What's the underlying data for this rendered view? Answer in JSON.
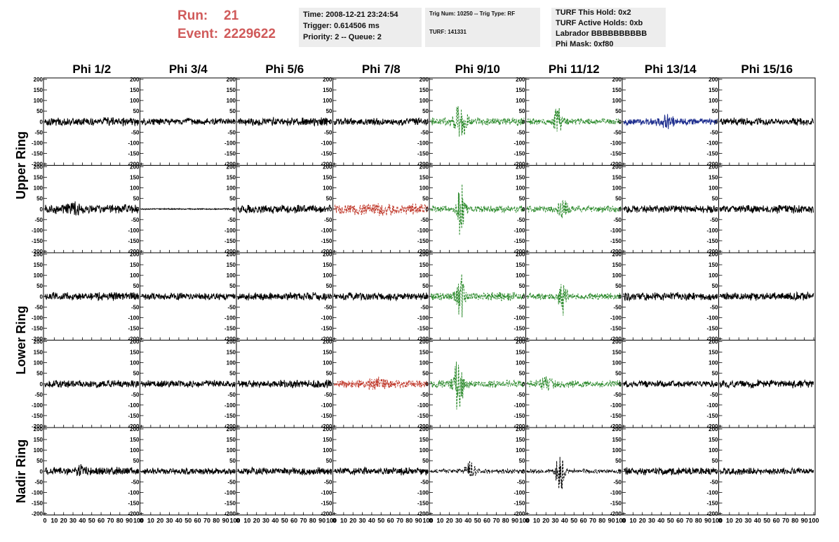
{
  "header": {
    "run_label": "Run:",
    "run_value": "21",
    "event_label": "Event:",
    "event_value": "2229622",
    "time": "Time: 2008-12-21 23:24:54",
    "trigger": "Trigger: 0.614506 ms",
    "priority": "Priority: 2 -- Queue: 2",
    "trig_num": "Trig Num: 10250 -- Trig Type: RF",
    "turf": "TURF: 141331",
    "turf_hold": "TURF This Hold: 0x2",
    "turf_active": "TURF Active Holds: 0xb",
    "labrador": "Labrador BBBBBBBBBB",
    "phi_mask": "Phi Mask: 0xf80"
  },
  "columns": [
    "Phi 1/2",
    "Phi 3/4",
    "Phi 5/6",
    "Phi 7/8",
    "Phi 9/10",
    "Phi 11/12",
    "Phi 13/14",
    "Phi 15/16"
  ],
  "ring_labels": [
    "Upper Ring",
    "Lower Ring",
    "Nadir Ring"
  ],
  "colors": {
    "black": "#000000",
    "green": "#2e8b2e",
    "red": "#c0392b",
    "blue": "#1f2f8f",
    "title_red": "#d05a5a",
    "box_bg": "#ededed"
  },
  "chart_data": {
    "type": "line",
    "xlim": [
      0,
      100
    ],
    "ylim": [
      -200,
      200
    ],
    "y_ticks": [
      200,
      150,
      100,
      50,
      0,
      -50,
      -100,
      -150,
      -200
    ],
    "x_ticks": [
      0,
      10,
      20,
      30,
      40,
      50,
      60,
      70,
      80,
      90,
      100
    ],
    "rows": [
      [
        {
          "color": "black",
          "style": "solid",
          "amp": 22,
          "burst": 0
        },
        {
          "color": "black",
          "style": "solid",
          "amp": 18,
          "burst": 0
        },
        {
          "color": "black",
          "style": "solid",
          "amp": 22,
          "burst": 0
        },
        {
          "color": "black",
          "style": "solid",
          "amp": 20,
          "burst": 0
        },
        {
          "color": "green",
          "style": "dashed",
          "amp": 22,
          "burst": 85,
          "center": 32,
          "width": 14
        },
        {
          "color": "green",
          "style": "dashed",
          "amp": 18,
          "burst": 95,
          "center": 33,
          "width": 8
        },
        {
          "color": "blue",
          "style": "solid",
          "amp": 18,
          "burst": 40,
          "center": 45,
          "width": 15
        },
        {
          "color": "black",
          "style": "solid",
          "amp": 20,
          "burst": 0
        }
      ],
      [
        {
          "color": "black",
          "style": "solid",
          "amp": 25,
          "burst": 25,
          "center": 30,
          "width": 10
        },
        {
          "color": "black",
          "style": "solid",
          "amp": 3,
          "burst": 0
        },
        {
          "color": "black",
          "style": "solid",
          "amp": 22,
          "burst": 0
        },
        {
          "color": "red",
          "style": "dashed",
          "amp": 28,
          "burst": 10,
          "center": 45,
          "width": 30
        },
        {
          "color": "green",
          "style": "dashed",
          "amp": 20,
          "burst": 140,
          "center": 32,
          "width": 8
        },
        {
          "color": "green",
          "style": "dashed",
          "amp": 18,
          "burst": 50,
          "center": 38,
          "width": 10
        },
        {
          "color": "black",
          "style": "solid",
          "amp": 20,
          "burst": 0
        },
        {
          "color": "black",
          "style": "solid",
          "amp": 22,
          "burst": 0
        }
      ],
      [
        {
          "color": "black",
          "style": "solid",
          "amp": 22,
          "burst": 0
        },
        {
          "color": "black",
          "style": "solid",
          "amp": 18,
          "burst": 0
        },
        {
          "color": "black",
          "style": "solid",
          "amp": 22,
          "burst": 0
        },
        {
          "color": "black",
          "style": "solid",
          "amp": 20,
          "burst": 0
        },
        {
          "color": "green",
          "style": "dashed",
          "amp": 22,
          "burst": 115,
          "center": 32,
          "width": 8
        },
        {
          "color": "green",
          "style": "dashed",
          "amp": 18,
          "burst": 90,
          "center": 38,
          "width": 8
        },
        {
          "color": "black",
          "style": "solid",
          "amp": 22,
          "burst": 0
        },
        {
          "color": "black",
          "style": "solid",
          "amp": 22,
          "burst": 0
        }
      ],
      [
        {
          "color": "black",
          "style": "solid",
          "amp": 20,
          "burst": 0
        },
        {
          "color": "black",
          "style": "solid",
          "amp": 20,
          "burst": 0
        },
        {
          "color": "black",
          "style": "solid",
          "amp": 22,
          "burst": 0
        },
        {
          "color": "red",
          "style": "dashed",
          "amp": 22,
          "burst": 15,
          "center": 45,
          "width": 20
        },
        {
          "color": "green",
          "style": "dashed",
          "amp": 20,
          "burst": 160,
          "center": 30,
          "width": 10
        },
        {
          "color": "green",
          "style": "dashed",
          "amp": 20,
          "burst": 25,
          "center": 20,
          "width": 15
        },
        {
          "color": "black",
          "style": "solid",
          "amp": 18,
          "burst": 0
        },
        {
          "color": "black",
          "style": "solid",
          "amp": 22,
          "burst": 0
        }
      ],
      [
        {
          "color": "black",
          "style": "solid",
          "amp": 22,
          "burst": 20,
          "center": 40,
          "width": 10
        },
        {
          "color": "black",
          "style": "solid",
          "amp": 18,
          "burst": 0
        },
        {
          "color": "black",
          "style": "solid",
          "amp": 20,
          "burst": 0
        },
        {
          "color": "black",
          "style": "solid",
          "amp": 20,
          "burst": 0
        },
        {
          "color": "black",
          "style": "dashed",
          "amp": 12,
          "burst": 50,
          "center": 42,
          "width": 10
        },
        {
          "color": "black",
          "style": "dashed",
          "amp": 12,
          "burst": 130,
          "center": 35,
          "width": 8
        },
        {
          "color": "black",
          "style": "solid",
          "amp": 20,
          "burst": 0
        },
        {
          "color": "black",
          "style": "solid",
          "amp": 18,
          "burst": 0
        }
      ]
    ]
  }
}
